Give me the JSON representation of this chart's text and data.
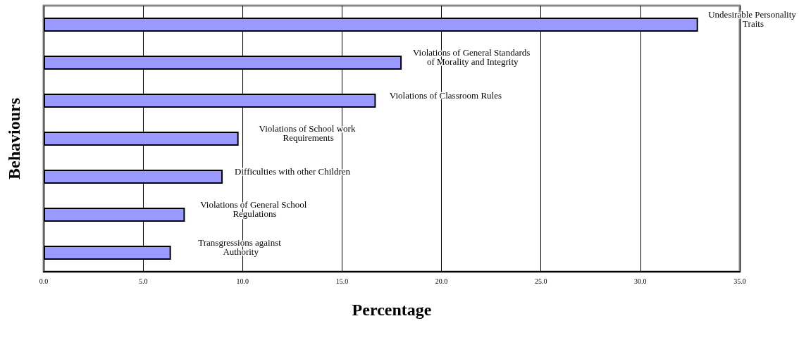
{
  "chart_data": {
    "type": "bar",
    "orientation": "horizontal",
    "xlabel": "Percentage",
    "ylabel": "Behaviours",
    "categories": [
      "Undesirable Personality Traits",
      "Violations of General Standards of Morality and Integrity",
      "Violations of Classroom Rules",
      "Violations of School work Requirements",
      "Difficulties with other Children",
      "Violations of General School Regulations",
      "Transgressions against Authority"
    ],
    "values": [
      32.9,
      18.0,
      16.7,
      9.8,
      9.0,
      7.1,
      6.4
    ],
    "color": "#9999ff",
    "xlim": [
      0,
      35
    ],
    "xticks": [
      {
        "value": 0,
        "label": "0.0"
      },
      {
        "value": 5,
        "label": "5.0"
      },
      {
        "value": 10,
        "label": "10.0"
      },
      {
        "value": 15,
        "label": "15.0"
      },
      {
        "value": 20,
        "label": "20.0"
      },
      {
        "value": 25,
        "label": "25.0"
      },
      {
        "value": 30,
        "label": "30.0"
      },
      {
        "value": 35,
        "label": "35.0"
      }
    ],
    "grid": "x",
    "tick_labels": "x"
  }
}
